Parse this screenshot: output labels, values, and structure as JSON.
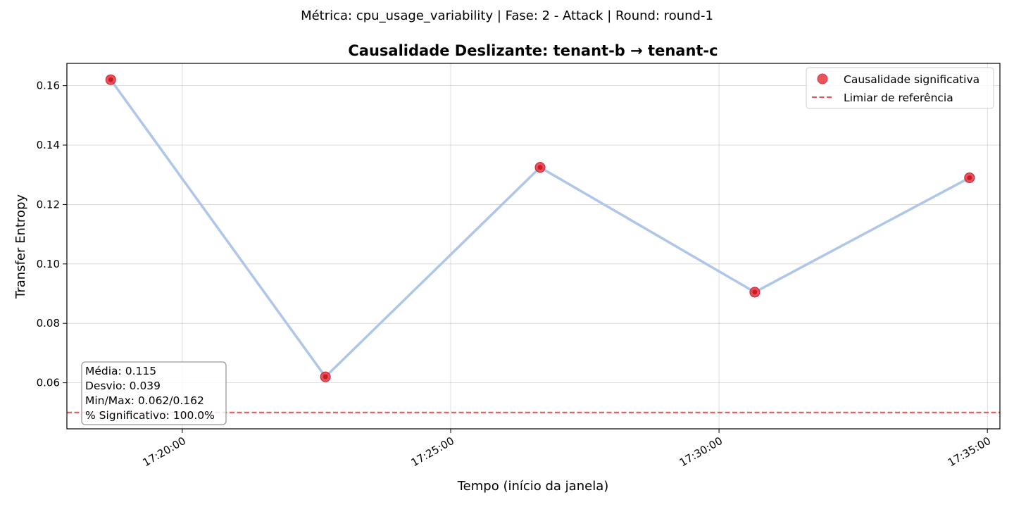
{
  "suptitle": "Métrica: cpu_usage_variability | Fase: 2 - Attack | Round: round-1",
  "chart_data": {
    "type": "line",
    "title": "Causalidade Deslizante: tenant-b → tenant-c",
    "xlabel": "Tempo (início da janela)",
    "ylabel": "Transfer Entropy",
    "x_ticks": [
      "17:20:00",
      "17:25:00",
      "17:30:00",
      "17:35:00"
    ],
    "y_ticks": [
      "0.06",
      "0.08",
      "0.10",
      "0.12",
      "0.14",
      "0.16"
    ],
    "xlim": [
      "17:17:51",
      "17:35:14"
    ],
    "ylim": [
      0.0445,
      0.1675
    ],
    "grid": true,
    "legend_position": "top-right",
    "line_color": "#aec7e8",
    "series": [
      {
        "name": "Causalidade significativa",
        "color": "#e8343f",
        "x": [
          "17:18:40",
          "17:22:40",
          "17:26:40",
          "17:30:40",
          "17:34:40"
        ],
        "y": [
          0.162,
          0.062,
          0.1325,
          0.0905,
          0.129
        ]
      }
    ],
    "reference_line": {
      "name": "Limiar de referência",
      "y": 0.05,
      "color": "#e8343f"
    },
    "stats": [
      "Média: 0.115",
      "Desvio: 0.039",
      "Min/Max: 0.062/0.162",
      "% Significativo: 100.0%"
    ]
  }
}
